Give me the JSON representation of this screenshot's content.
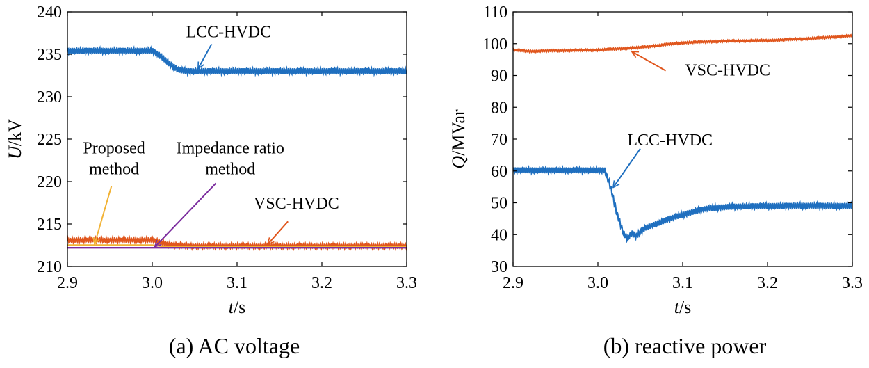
{
  "chart_data": [
    {
      "type": "line",
      "caption": "(a) AC voltage",
      "xlabel_italic": "t",
      "xlabel_unit": "/s",
      "ylabel_italic": "U",
      "ylabel_unit": "/kV",
      "xlim": [
        2.9,
        3.3
      ],
      "ylim": [
        210,
        240
      ],
      "xticks": [
        "2.9",
        "3.0",
        "3.1",
        "3.2",
        "3.3"
      ],
      "yticks": [
        "210",
        "215",
        "220",
        "225",
        "230",
        "235",
        "240"
      ],
      "grid": false,
      "series": [
        {
          "name": "LCC-HVDC",
          "color": "#1f6fbf",
          "points": [
            [
              2.9,
              235.4
            ],
            [
              2.9,
              235.4
            ],
            [
              3.0,
              235.4
            ],
            [
              3.01,
              234.8
            ],
            [
              3.02,
              233.9
            ],
            [
              3.03,
              233.2
            ],
            [
              3.04,
              233.0
            ],
            [
              3.3,
              233.0
            ]
          ],
          "ripple": 0.35
        },
        {
          "name": "VSC-HVDC",
          "color": "#e0561d",
          "points": [
            [
              2.9,
              213.1
            ],
            [
              3.0,
              213.1
            ],
            [
              3.02,
              212.6
            ],
            [
              3.04,
              212.4
            ],
            [
              3.3,
              212.4
            ]
          ],
          "ripple": 0.25
        },
        {
          "name": "Proposed method",
          "color": "#f2b234",
          "points": [
            [
              2.9,
              212.5
            ],
            [
              3.0,
              212.5
            ],
            [
              3.02,
              212.3
            ],
            [
              3.3,
              212.3
            ]
          ],
          "ripple": 0.0
        },
        {
          "name": "Impedance ratio method",
          "color": "#7b2c9e",
          "points": [
            [
              2.9,
              212.2
            ],
            [
              3.3,
              212.2
            ]
          ],
          "ripple": 0.0
        }
      ],
      "annotations": [
        {
          "lines": [
            "LCC-HVDC"
          ],
          "text_at": [
            3.09,
            237.0
          ],
          "arrow_from": [
            3.07,
            236.2
          ],
          "arrow_to": [
            3.054,
            233.3
          ],
          "color": "#1f6fbf"
        },
        {
          "lines": [
            "VSC-HVDC"
          ],
          "text_at": [
            3.17,
            216.8
          ],
          "arrow_from": [
            3.16,
            215.3
          ],
          "arrow_to": [
            3.136,
            212.6
          ],
          "color": "#e0561d"
        },
        {
          "lines": [
            "Proposed",
            "method"
          ],
          "text_at": [
            2.955,
            223.3
          ],
          "arrow_from": [
            2.952,
            219.5
          ],
          "arrow_to": [
            2.932,
            212.6
          ],
          "color": "#f2b234"
        },
        {
          "lines": [
            "Impedance ratio",
            "method"
          ],
          "text_at": [
            3.092,
            223.3
          ],
          "arrow_from": [
            3.075,
            219.8
          ],
          "arrow_to": [
            3.003,
            212.3
          ],
          "color": "#7b2c9e"
        }
      ]
    },
    {
      "type": "line",
      "caption": "(b) reactive power",
      "xlabel_italic": "t",
      "xlabel_unit": "/s",
      "ylabel_italic": "Q",
      "ylabel_unit": "/MVar",
      "xlim": [
        2.9,
        3.3
      ],
      "ylim": [
        30,
        110
      ],
      "xticks": [
        "2.9",
        "3.0",
        "3.1",
        "3.2",
        "3.3"
      ],
      "yticks": [
        "30",
        "40",
        "50",
        "60",
        "70",
        "80",
        "90",
        "100",
        "110"
      ],
      "grid": false,
      "series": [
        {
          "name": "VSC-HVDC",
          "color": "#e0561d",
          "points": [
            [
              2.9,
              98.0
            ],
            [
              2.92,
              97.6
            ],
            [
              2.95,
              97.8
            ],
            [
              3.0,
              98.0
            ],
            [
              3.05,
              98.8
            ],
            [
              3.1,
              100.3
            ],
            [
              3.15,
              100.8
            ],
            [
              3.2,
              101.0
            ],
            [
              3.25,
              101.6
            ],
            [
              3.3,
              102.5
            ]
          ],
          "ripple": 0.3
        },
        {
          "name": "LCC-HVDC",
          "color": "#1f6fbf",
          "points": [
            [
              2.9,
              60.2
            ],
            [
              3.008,
              60.2
            ],
            [
              3.015,
              55.0
            ],
            [
              3.022,
              47.0
            ],
            [
              3.03,
              40.5
            ],
            [
              3.035,
              38.8
            ],
            [
              3.04,
              40.5
            ],
            [
              3.045,
              39.5
            ],
            [
              3.055,
              42.0
            ],
            [
              3.07,
              43.5
            ],
            [
              3.09,
              45.5
            ],
            [
              3.11,
              47.0
            ],
            [
              3.13,
              48.3
            ],
            [
              3.16,
              48.8
            ],
            [
              3.2,
              49.0
            ],
            [
              3.25,
              49.1
            ],
            [
              3.3,
              49.0
            ]
          ],
          "ripple": 0.9
        }
      ],
      "annotations": [
        {
          "lines": [
            "VSC-HVDC"
          ],
          "text_at": [
            3.153,
            90.0
          ],
          "arrow_from": [
            3.08,
            91.5
          ],
          "arrow_to": [
            3.04,
            97.5
          ],
          "color": "#e0561d"
        },
        {
          "lines": [
            "LCC-HVDC"
          ],
          "text_at": [
            3.085,
            68.0
          ],
          "arrow_from": [
            3.05,
            67.0
          ],
          "arrow_to": [
            3.018,
            54.8
          ],
          "color": "#1f6fbf"
        }
      ]
    }
  ]
}
